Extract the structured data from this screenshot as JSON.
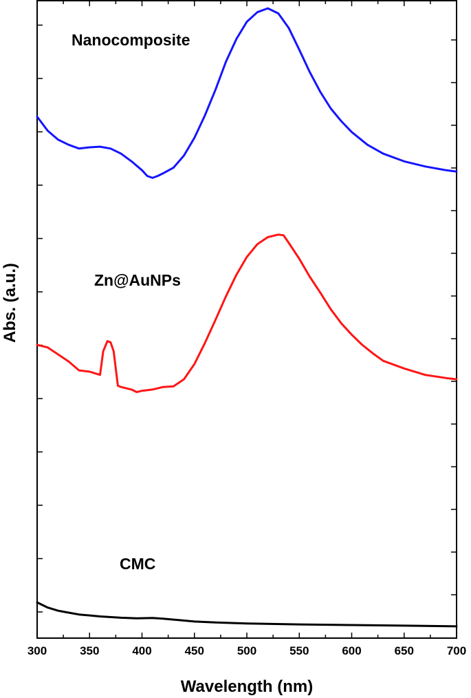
{
  "chart_data": {
    "type": "line",
    "xlabel": "Wavelength (nm)",
    "ylabel": "Abs. (a.u.)",
    "xlim": [
      300,
      700
    ],
    "ylim": [
      0,
      100
    ],
    "x_ticks": [
      300,
      350,
      400,
      450,
      500,
      550,
      600,
      650,
      700
    ],
    "grid": false,
    "series": [
      {
        "name": "Nanocomposite",
        "color": "#1515ff",
        "x": [
          300,
          310,
          320,
          330,
          340,
          350,
          360,
          370,
          380,
          390,
          400,
          405,
          410,
          415,
          420,
          430,
          440,
          450,
          460,
          470,
          480,
          490,
          500,
          510,
          520,
          530,
          540,
          550,
          560,
          570,
          580,
          590,
          600,
          615,
          630,
          650,
          670,
          690,
          700
        ],
        "y": [
          81.8,
          79.6,
          78.2,
          77.4,
          76.8,
          77.0,
          77.1,
          76.8,
          76.0,
          74.8,
          73.4,
          72.5,
          72.2,
          72.5,
          72.9,
          73.8,
          75.7,
          78.5,
          82.0,
          86.0,
          90.4,
          94.0,
          96.7,
          98.2,
          98.8,
          98.0,
          95.7,
          92.3,
          88.8,
          85.7,
          83.1,
          81.1,
          79.4,
          77.4,
          76.0,
          74.8,
          74.0,
          73.4,
          73.2
        ]
      },
      {
        "name": "Zn@AuNPs",
        "color": "#ff1515",
        "x": [
          300,
          310,
          320,
          330,
          340,
          350,
          360,
          363,
          367,
          370,
          373,
          377,
          380,
          390,
          395,
          400,
          410,
          420,
          430,
          440,
          450,
          460,
          470,
          480,
          490,
          500,
          510,
          520,
          530,
          535,
          540,
          550,
          560,
          570,
          580,
          590,
          600,
          610,
          620,
          630,
          650,
          670,
          690,
          700
        ],
        "y": [
          46.0,
          45.6,
          44.5,
          43.4,
          42.0,
          41.8,
          41.3,
          45.0,
          46.6,
          46.4,
          45.0,
          39.6,
          39.4,
          39.0,
          38.6,
          38.8,
          39.0,
          39.4,
          39.5,
          40.6,
          43.0,
          46.3,
          49.9,
          53.6,
          57.0,
          59.8,
          61.8,
          62.9,
          63.3,
          63.2,
          62.0,
          59.5,
          56.7,
          54.2,
          51.6,
          49.4,
          47.6,
          46.0,
          44.7,
          43.5,
          42.3,
          41.3,
          40.8,
          40.6
        ]
      },
      {
        "name": "CMC",
        "color": "#000000",
        "x": [
          300,
          310,
          320,
          330,
          340,
          360,
          380,
          395,
          410,
          420,
          430,
          450,
          470,
          500,
          550,
          600,
          650,
          700
        ],
        "y": [
          5.6,
          4.8,
          4.3,
          4.0,
          3.7,
          3.4,
          3.2,
          3.1,
          3.15,
          3.05,
          2.9,
          2.6,
          2.45,
          2.3,
          2.15,
          2.05,
          1.95,
          1.85
        ]
      }
    ],
    "annotations": [
      {
        "text": "Nanocomposite",
        "series": 0
      },
      {
        "text": "Zn@AuNPs",
        "series": 1
      },
      {
        "text": "CMC",
        "series": 2
      }
    ]
  }
}
